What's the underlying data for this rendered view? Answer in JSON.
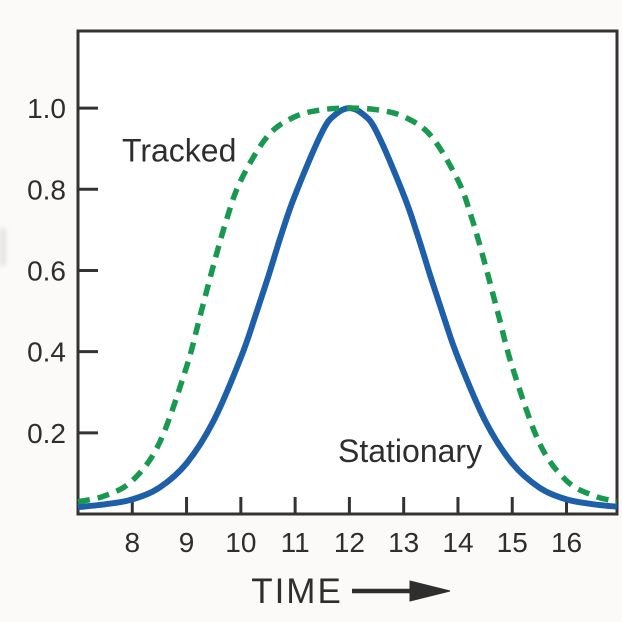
{
  "figure": {
    "background": "#fbfaf8",
    "plot_background": "#ffffff",
    "frame_color": "#333333",
    "tick_color": "#333333",
    "text_color": "#2e2e2e"
  },
  "chart_data": {
    "type": "line",
    "title": "",
    "xlabel": "TIME",
    "x_axis_arrow": "→",
    "ylabel": "",
    "x_domain": [
      7.0,
      16.93
    ],
    "y_domain": [
      0,
      1.19
    ],
    "grid": false,
    "legend_position": "inline-annotations",
    "x_ticks": {
      "values": [
        8,
        9,
        10,
        11,
        12,
        13,
        14,
        15,
        16
      ],
      "labels": [
        "8",
        "9",
        "10",
        "11",
        "12",
        "13",
        "14",
        "15",
        "16"
      ]
    },
    "y_ticks": {
      "values": [
        0.2,
        0.4,
        0.6,
        0.8,
        1.0
      ],
      "labels": [
        "0.2",
        "0.4",
        "0.6",
        "0.8",
        "1.0"
      ]
    },
    "series": [
      {
        "name": "Stationary",
        "color": "#1d5fa8",
        "line_style": "solid",
        "line_width": 6,
        "points": [
          [
            7.0,
            0.017
          ],
          [
            7.5,
            0.024
          ],
          [
            8.0,
            0.036
          ],
          [
            8.5,
            0.065
          ],
          [
            9.0,
            0.125
          ],
          [
            9.5,
            0.23
          ],
          [
            10.0,
            0.385
          ],
          [
            10.25,
            0.481
          ],
          [
            10.5,
            0.583
          ],
          [
            10.75,
            0.69
          ],
          [
            11.0,
            0.786
          ],
          [
            11.5,
            0.942
          ],
          [
            11.75,
            0.985
          ],
          [
            12.0,
            1.0
          ],
          [
            12.25,
            0.985
          ],
          [
            12.5,
            0.942
          ],
          [
            13.0,
            0.786
          ],
          [
            13.25,
            0.69
          ],
          [
            13.5,
            0.583
          ],
          [
            13.75,
            0.481
          ],
          [
            14.0,
            0.385
          ],
          [
            14.5,
            0.23
          ],
          [
            15.0,
            0.125
          ],
          [
            15.5,
            0.065
          ],
          [
            16.0,
            0.036
          ],
          [
            16.5,
            0.024
          ],
          [
            16.93,
            0.018
          ]
        ]
      },
      {
        "name": "Tracked",
        "color": "#18994f",
        "line_style": "dashed",
        "line_width": 5.5,
        "points": [
          [
            7.0,
            0.03
          ],
          [
            7.5,
            0.045
          ],
          [
            8.0,
            0.082
          ],
          [
            8.5,
            0.175
          ],
          [
            9.0,
            0.363
          ],
          [
            9.25,
            0.488
          ],
          [
            9.5,
            0.615
          ],
          [
            9.75,
            0.731
          ],
          [
            10.0,
            0.822
          ],
          [
            10.5,
            0.932
          ],
          [
            11.0,
            0.979
          ],
          [
            11.5,
            0.996
          ],
          [
            12.0,
            1.0
          ],
          [
            12.5,
            0.996
          ],
          [
            13.0,
            0.979
          ],
          [
            13.5,
            0.932
          ],
          [
            14.0,
            0.822
          ],
          [
            14.25,
            0.731
          ],
          [
            14.5,
            0.615
          ],
          [
            14.75,
            0.488
          ],
          [
            15.0,
            0.363
          ],
          [
            15.5,
            0.175
          ],
          [
            16.0,
            0.082
          ],
          [
            16.5,
            0.045
          ],
          [
            16.93,
            0.031
          ]
        ]
      }
    ],
    "annotations": [
      {
        "text": "Tracked",
        "series": "Tracked",
        "t": 7.81,
        "v": 0.869
      },
      {
        "text": "Stationary",
        "series": "Stationary",
        "t": 11.79,
        "v": 0.128
      }
    ]
  }
}
